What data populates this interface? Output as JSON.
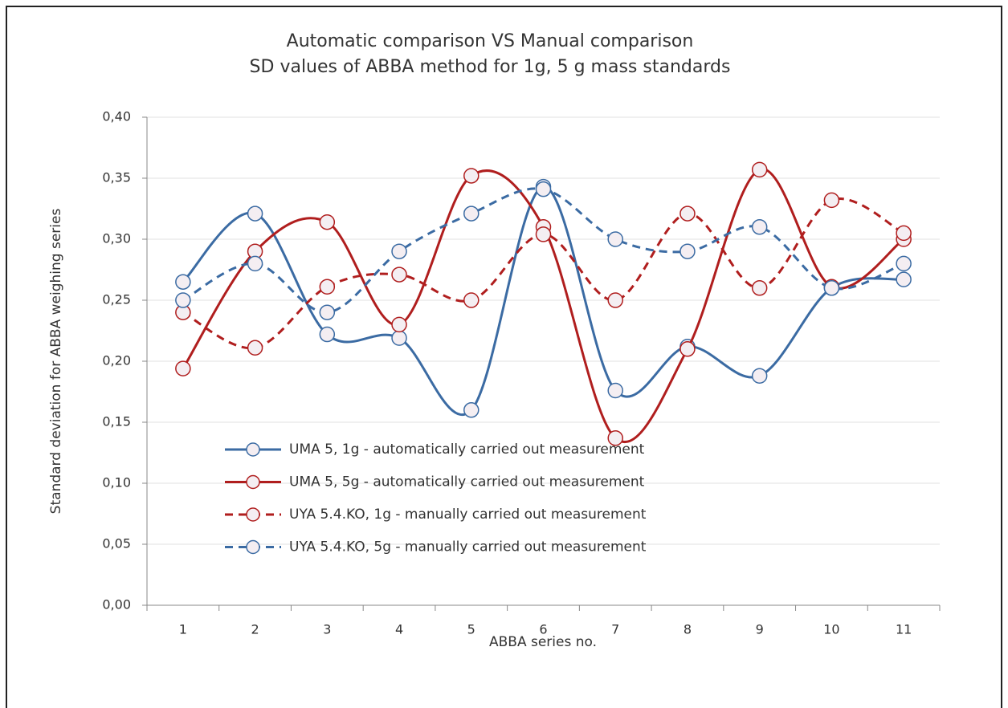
{
  "chart_data": {
    "type": "line",
    "title": "Automatic comparison VS Manual comparison",
    "subtitle": "SD values of ABBA method for 1g, 5 g mass standards",
    "x_label": "ABBA series no.",
    "y_label": "Standard deviation for ABBA weighing series",
    "categories": [
      "1",
      "2",
      "3",
      "4",
      "5",
      "6",
      "7",
      "8",
      "9",
      "10",
      "11"
    ],
    "ylim": [
      0,
      0.4
    ],
    "yticks": [
      {
        "value": 0,
        "label": "0,00"
      },
      {
        "value": 0.05,
        "label": "0,05"
      },
      {
        "value": 0.1,
        "label": "0,10"
      },
      {
        "value": 0.15,
        "label": "0,15"
      },
      {
        "value": 0.2,
        "label": "0,20"
      },
      {
        "value": 0.25,
        "label": "0,25"
      },
      {
        "value": 0.3,
        "label": "0,30"
      },
      {
        "value": 0.35,
        "label": "0,35"
      },
      {
        "value": 0.4,
        "label": "0,40"
      }
    ],
    "grid": true,
    "smooth": true,
    "legend": "lower left",
    "series": [
      {
        "name": "UMA 5, 1g - automatically carried out measurement",
        "color": "#3b6ba3",
        "line_style": "solid",
        "values": [
          0.265,
          0.321,
          0.222,
          0.219,
          0.16,
          0.343,
          0.176,
          0.212,
          0.188,
          0.26,
          0.267
        ]
      },
      {
        "name": "UMA 5, 5g - automatically carried out measurement",
        "color": "#b01e1e",
        "line_style": "solid",
        "values": [
          0.194,
          0.29,
          0.314,
          0.23,
          0.352,
          0.31,
          0.137,
          0.21,
          0.357,
          0.261,
          0.3
        ]
      },
      {
        "name": "UYA 5.4.KO, 1g - manually carried out measurement",
        "color": "#b01e1e",
        "line_style": "dashed",
        "values": [
          0.24,
          0.211,
          0.261,
          0.271,
          0.25,
          0.304,
          0.25,
          0.321,
          0.26,
          0.332,
          0.305
        ]
      },
      {
        "name": "UYA 5.4.KO, 5g - manually carried out measurement",
        "color": "#3b6ba3",
        "line_style": "dashed",
        "values": [
          0.25,
          0.28,
          0.24,
          0.29,
          0.321,
          0.341,
          0.3,
          0.29,
          0.31,
          0.26,
          0.28
        ]
      }
    ]
  }
}
